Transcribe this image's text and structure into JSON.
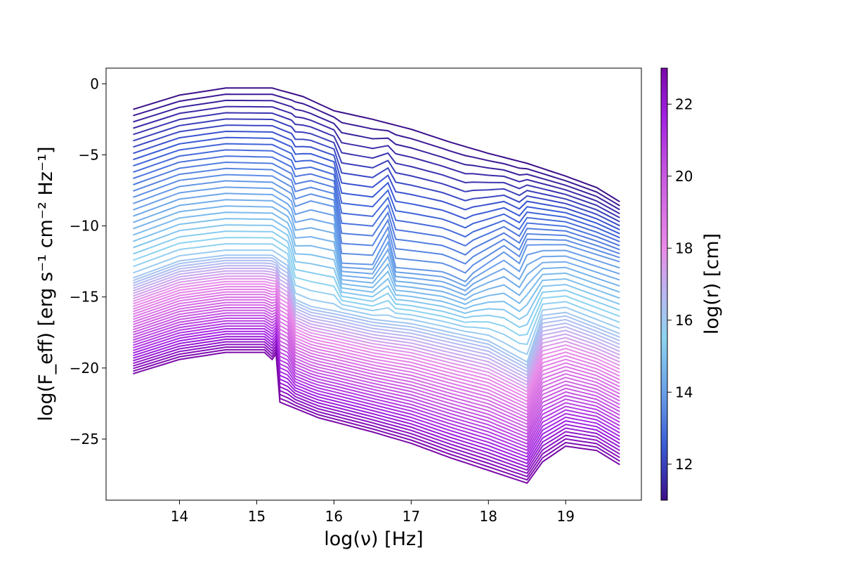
{
  "chart_data": {
    "type": "line",
    "xlabel": "log(ν)   [Hz]",
    "ylabel": "log(F_eff)   [erg s⁻¹ cm⁻² Hz⁻¹]",
    "colorbar_label": "log(r)   [cm]",
    "xlim": [
      13.05,
      19.98
    ],
    "ylim": [
      -29.3,
      1.1
    ],
    "x_ticks": [
      "14",
      "15",
      "16",
      "17",
      "18",
      "19"
    ],
    "x_tick_values": [
      14,
      15,
      16,
      17,
      18,
      19
    ],
    "y_ticks": [
      "0",
      "−5",
      "−10",
      "−15",
      "−20",
      "−25"
    ],
    "y_tick_values": [
      0,
      -5,
      -10,
      -15,
      -20,
      -25
    ],
    "colorbar": {
      "range": [
        11,
        23
      ],
      "ticks": [
        "12",
        "14",
        "16",
        "18",
        "20",
        "22"
      ],
      "tick_values": [
        12,
        14,
        16,
        18,
        20,
        22
      ],
      "colors": [
        {
          "value": 11,
          "color": "#3b0f8a"
        },
        {
          "value": 12.5,
          "color": "#3a5bd6"
        },
        {
          "value": 14,
          "color": "#6aa0e8"
        },
        {
          "value": 15.5,
          "color": "#8cd3f0"
        },
        {
          "value": 16.7,
          "color": "#b8b8f0"
        },
        {
          "value": 18,
          "color": "#e98be8"
        },
        {
          "value": 20,
          "color": "#c95ae0"
        },
        {
          "value": 21.7,
          "color": "#a020e0"
        },
        {
          "value": 23,
          "color": "#7a0aa8"
        }
      ]
    },
    "x_range_data": [
      13.4,
      19.7
    ],
    "series_count": 65,
    "series_logr_range": [
      11,
      23
    ],
    "reference_series": [
      {
        "logr": 11,
        "points": [
          [
            13.4,
            -1.8
          ],
          [
            14.0,
            -0.8
          ],
          [
            14.6,
            -0.3
          ],
          [
            15.2,
            -0.3
          ],
          [
            15.6,
            -0.9
          ],
          [
            16.0,
            -1.9
          ],
          [
            16.5,
            -2.5
          ],
          [
            17.0,
            -3.2
          ],
          [
            17.5,
            -4.1
          ],
          [
            18.0,
            -4.9
          ],
          [
            18.5,
            -5.6
          ],
          [
            19.0,
            -6.5
          ],
          [
            19.4,
            -7.3
          ],
          [
            19.7,
            -8.3
          ]
        ]
      },
      {
        "logr": 13.8,
        "points": [
          [
            13.4,
            -8.4
          ],
          [
            14.0,
            -7.2
          ],
          [
            14.6,
            -6.8
          ],
          [
            15.2,
            -6.9
          ],
          [
            15.45,
            -7.7
          ],
          [
            15.5,
            -8.6
          ],
          [
            15.7,
            -8.2
          ],
          [
            16.0,
            -8.6
          ],
          [
            16.1,
            -12.6
          ],
          [
            16.5,
            -12.7
          ],
          [
            16.7,
            -10.6
          ],
          [
            16.8,
            -12.9
          ],
          [
            17.4,
            -13.2
          ],
          [
            17.5,
            -13.4
          ],
          [
            17.7,
            -13.9
          ],
          [
            17.8,
            -13.3
          ],
          [
            18.2,
            -11.8
          ],
          [
            18.4,
            -12.6
          ],
          [
            18.5,
            -11.3
          ],
          [
            19.0,
            -11.3
          ],
          [
            19.7,
            -12.5
          ]
        ]
      },
      {
        "logr": 16,
        "points": [
          [
            13.4,
            -13.6
          ],
          [
            14.0,
            -12.4
          ],
          [
            14.6,
            -12.0
          ],
          [
            15.2,
            -12.0
          ],
          [
            15.4,
            -12.7
          ],
          [
            15.5,
            -15.1
          ],
          [
            15.7,
            -15.6
          ],
          [
            16.0,
            -15.9
          ],
          [
            16.5,
            -16.5
          ],
          [
            17.0,
            -16.8
          ],
          [
            17.5,
            -17.4
          ],
          [
            18.0,
            -18.0
          ],
          [
            18.4,
            -19.2
          ],
          [
            18.5,
            -19.5
          ],
          [
            18.7,
            -16.2
          ],
          [
            19.0,
            -16.0
          ],
          [
            19.7,
            -17.5
          ]
        ]
      },
      {
        "logr": 23,
        "points": [
          [
            13.4,
            -20.4
          ],
          [
            14.0,
            -19.4
          ],
          [
            14.6,
            -18.9
          ],
          [
            15.1,
            -18.9
          ],
          [
            15.2,
            -19.4
          ],
          [
            15.25,
            -19.0
          ],
          [
            15.3,
            -22.4
          ],
          [
            15.8,
            -23.5
          ],
          [
            16.5,
            -24.5
          ],
          [
            17.0,
            -25.3
          ],
          [
            17.5,
            -26.3
          ],
          [
            18.0,
            -27.2
          ],
          [
            18.5,
            -28.1
          ],
          [
            18.7,
            -26.6
          ],
          [
            19.0,
            -25.5
          ],
          [
            19.4,
            -25.8
          ],
          [
            19.7,
            -26.8
          ]
        ]
      }
    ]
  }
}
